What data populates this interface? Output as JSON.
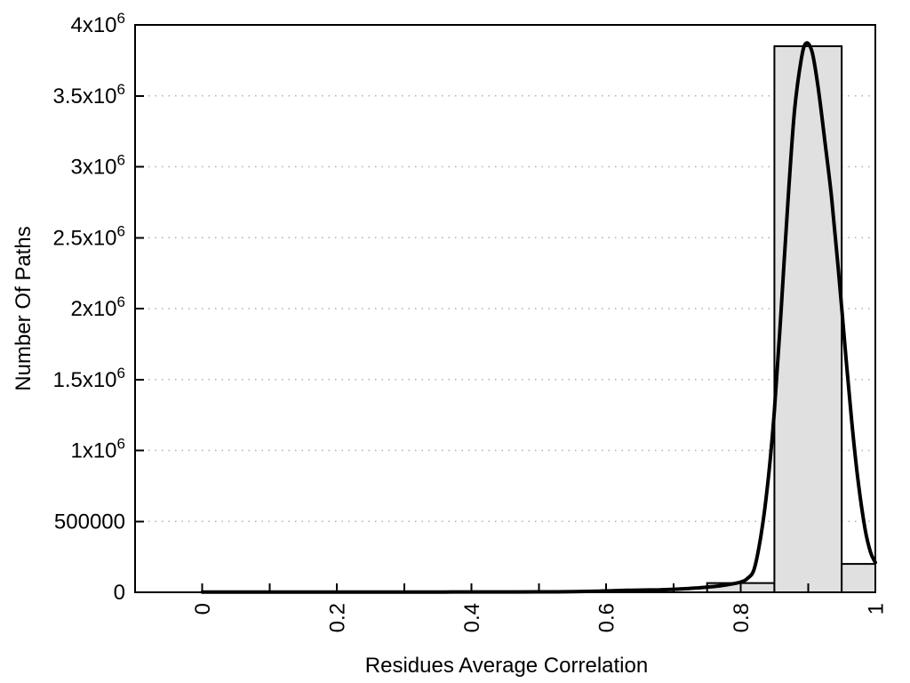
{
  "chart_data": {
    "type": "bar",
    "subtype": "histogram-with-fit-curve",
    "title": "",
    "xlabel": "Residues Average Correlation",
    "ylabel": "Number Of Paths",
    "xlim": [
      -0.1,
      1.0
    ],
    "ylim": [
      0,
      4000000
    ],
    "grid": "horizontal dotted lines at each y tick",
    "legend": "none",
    "colors": {
      "background": "#ffffff",
      "axis": "#000000",
      "grid": "#b0b0b0",
      "bar_fill": "#e0e0e0",
      "bar_stroke": "#000000",
      "curve": "#000000"
    },
    "x_ticks": [
      {
        "v": 0,
        "label": "0"
      },
      {
        "v": 0.2,
        "label": "0.2"
      },
      {
        "v": 0.4,
        "label": "0.4"
      },
      {
        "v": 0.6,
        "label": "0.6"
      },
      {
        "v": 0.8,
        "label": "0.8"
      },
      {
        "v": 1,
        "label": "1"
      }
    ],
    "x_minor_ticks": [
      0.1,
      0.3,
      0.5,
      0.7,
      0.9
    ],
    "y_ticks": [
      {
        "v": 0,
        "label": "0"
      },
      {
        "v": 500000,
        "label": "500000"
      },
      {
        "v": 1000000,
        "label": "1x10^6"
      },
      {
        "v": 1500000,
        "label": "1.5x10^6"
      },
      {
        "v": 2000000,
        "label": "2x10^6"
      },
      {
        "v": 2500000,
        "label": "2.5x10^6"
      },
      {
        "v": 3000000,
        "label": "3x10^6"
      },
      {
        "v": 3500000,
        "label": "3.5x10^6"
      },
      {
        "v": 4000000,
        "label": "4x10^6"
      }
    ],
    "histogram_bins": [
      {
        "x0": 0.75,
        "x1": 0.85,
        "count": 65000
      },
      {
        "x0": 0.85,
        "x1": 0.95,
        "count": 3850000
      },
      {
        "x0": 0.95,
        "x1": 1.0,
        "count": 200000
      }
    ],
    "fit_curve_points": [
      [
        0.0,
        2000
      ],
      [
        0.05,
        2000
      ],
      [
        0.1,
        2000
      ],
      [
        0.15,
        2000
      ],
      [
        0.2,
        2000
      ],
      [
        0.25,
        2000
      ],
      [
        0.3,
        2000
      ],
      [
        0.35,
        2100
      ],
      [
        0.4,
        2200
      ],
      [
        0.45,
        2500
      ],
      [
        0.5,
        3000
      ],
      [
        0.54,
        4000
      ],
      [
        0.58,
        7000
      ],
      [
        0.61,
        11000
      ],
      [
        0.63,
        14000
      ],
      [
        0.655,
        15500
      ],
      [
        0.68,
        17500
      ],
      [
        0.7,
        21000
      ],
      [
        0.72,
        26000
      ],
      [
        0.74,
        32000
      ],
      [
        0.76,
        41000
      ],
      [
        0.78,
        53000
      ],
      [
        0.8,
        72000
      ],
      [
        0.81,
        98000
      ],
      [
        0.82,
        165000
      ],
      [
        0.83,
        400000
      ],
      [
        0.84,
        760000
      ],
      [
        0.85,
        1280000
      ],
      [
        0.86,
        1990000
      ],
      [
        0.87,
        2750000
      ],
      [
        0.88,
        3400000
      ],
      [
        0.89,
        3760000
      ],
      [
        0.897,
        3870000
      ],
      [
        0.906,
        3810000
      ],
      [
        0.915,
        3560000
      ],
      [
        0.925,
        3180000
      ],
      [
        0.935,
        2780000
      ],
      [
        0.945,
        2280000
      ],
      [
        0.955,
        1730000
      ],
      [
        0.965,
        1200000
      ],
      [
        0.975,
        760000
      ],
      [
        0.985,
        440000
      ],
      [
        0.993,
        280000
      ],
      [
        1.0,
        210000
      ]
    ]
  }
}
